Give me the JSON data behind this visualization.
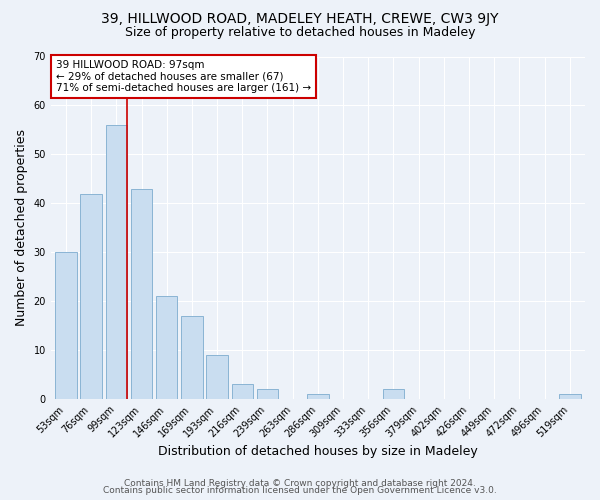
{
  "title": "39, HILLWOOD ROAD, MADELEY HEATH, CREWE, CW3 9JY",
  "subtitle": "Size of property relative to detached houses in Madeley",
  "xlabel": "Distribution of detached houses by size in Madeley",
  "ylabel": "Number of detached properties",
  "bar_labels": [
    "53sqm",
    "76sqm",
    "99sqm",
    "123sqm",
    "146sqm",
    "169sqm",
    "193sqm",
    "216sqm",
    "239sqm",
    "263sqm",
    "286sqm",
    "309sqm",
    "333sqm",
    "356sqm",
    "379sqm",
    "402sqm",
    "426sqm",
    "449sqm",
    "472sqm",
    "496sqm",
    "519sqm"
  ],
  "bar_values": [
    30,
    42,
    56,
    43,
    21,
    17,
    9,
    3,
    2,
    0,
    1,
    0,
    0,
    2,
    0,
    0,
    0,
    0,
    0,
    0,
    1
  ],
  "bar_color": "#c9ddf0",
  "bar_edge_color": "#8ab4d4",
  "highlight_bar_index": 2,
  "highlight_color": "#cc0000",
  "ylim": [
    0,
    70
  ],
  "yticks": [
    0,
    10,
    20,
    30,
    40,
    50,
    60,
    70
  ],
  "annotation_text": "39 HILLWOOD ROAD: 97sqm\n← 29% of detached houses are smaller (67)\n71% of semi-detached houses are larger (161) →",
  "annotation_box_color": "#ffffff",
  "annotation_box_edge": "#cc0000",
  "footer_line1": "Contains HM Land Registry data © Crown copyright and database right 2024.",
  "footer_line2": "Contains public sector information licensed under the Open Government Licence v3.0.",
  "background_color": "#edf2f9",
  "plot_bg_color": "#edf2f9",
  "grid_color": "#ffffff",
  "title_fontsize": 10,
  "subtitle_fontsize": 9,
  "axis_label_fontsize": 9,
  "tick_fontsize": 7,
  "footer_fontsize": 6.5
}
